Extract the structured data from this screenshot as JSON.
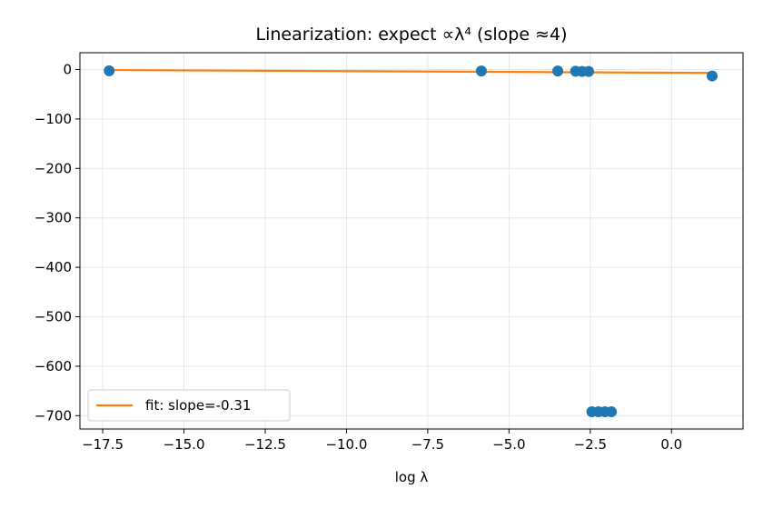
{
  "chart_data": {
    "type": "scatter",
    "title": "Linearization: expect ∝λ⁴ (slope ≈4)",
    "xlabel": "log λ",
    "ylabel": "",
    "xlim": [
      -18.2,
      2.2
    ],
    "ylim": [
      -727,
      34
    ],
    "xticks": [
      -17.5,
      -15.0,
      -12.5,
      -10.0,
      -7.5,
      -5.0,
      -2.5,
      0.0
    ],
    "xtick_labels": [
      "−17.5",
      "−15.0",
      "−12.5",
      "−10.0",
      "−7.5",
      "−5.0",
      "−2.5",
      "0.0"
    ],
    "yticks": [
      0,
      -100,
      -200,
      -300,
      -400,
      -500,
      -600,
      -700
    ],
    "ytick_labels": [
      "0",
      "−100",
      "−200",
      "−300",
      "−400",
      "−500",
      "−600",
      "−700"
    ],
    "grid": true,
    "legend_position": "lower-left",
    "series": [
      {
        "kind": "points",
        "color": "#1f77b4",
        "x": [
          -17.3,
          -5.85,
          -3.5,
          -2.95,
          -2.75,
          -2.55,
          1.25,
          -2.45,
          -2.25,
          -2.05,
          -1.85
        ],
        "y": [
          -2.5,
          -3,
          -3,
          -3.5,
          -4,
          -4,
          -13,
          -692,
          -692,
          -692,
          -692
        ]
      },
      {
        "kind": "line",
        "name": "fit: slope=-0.31",
        "color": "#ff7f0e",
        "x": [
          -17.3,
          1.25
        ],
        "y": [
          -1.0,
          -6.8
        ]
      }
    ]
  }
}
